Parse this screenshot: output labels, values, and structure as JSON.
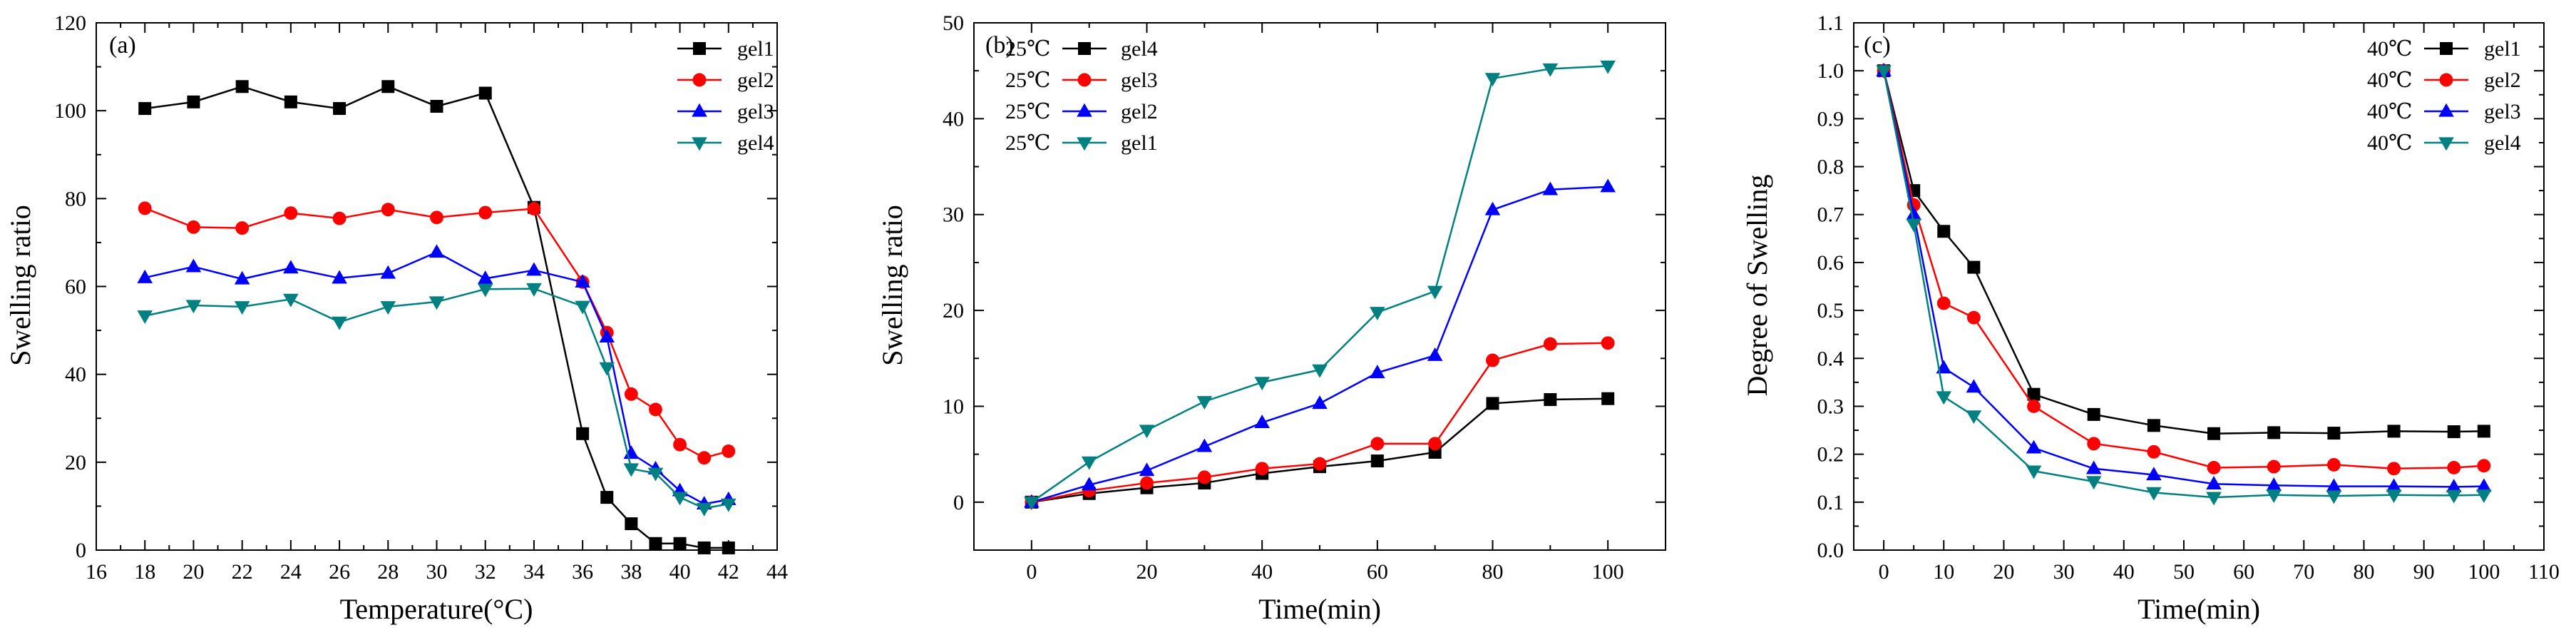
{
  "colors": {
    "gel1": "#000000",
    "gel2": "#ff0000",
    "gel3": "#0000ff",
    "gel4": "#008080"
  },
  "chart_data": [
    {
      "type": "line",
      "panel_label": "(a)",
      "xlabel": "Temperature(°C)",
      "ylabel": "Swelling ratio",
      "xlim": [
        16,
        44
      ],
      "ylim": [
        0,
        120
      ],
      "xticks": [
        16,
        18,
        20,
        22,
        24,
        26,
        28,
        30,
        32,
        34,
        36,
        38,
        40,
        42,
        44
      ],
      "yticks": [
        0,
        20,
        40,
        60,
        80,
        100,
        120
      ],
      "legend_position": "top-right",
      "series": [
        {
          "name": "gel1",
          "color": "#000000",
          "marker": "square",
          "x": [
            18,
            20,
            22,
            24,
            26,
            28,
            30,
            32,
            34,
            36,
            37,
            38,
            39,
            40,
            41,
            42
          ],
          "y": [
            100.5,
            102,
            105.5,
            102,
            100.5,
            105.5,
            101,
            104,
            78,
            26.5,
            12,
            6,
            1.5,
            1.5,
            0.5,
            0.5
          ]
        },
        {
          "name": "gel2",
          "color": "#ff0000",
          "marker": "circle",
          "x": [
            18,
            20,
            22,
            24,
            26,
            28,
            30,
            32,
            34,
            36,
            37,
            38,
            39,
            40,
            41,
            42
          ],
          "y": [
            77.8,
            73.5,
            73.3,
            76.7,
            75.5,
            77.5,
            75.7,
            76.8,
            77.7,
            61,
            49.5,
            35.5,
            32,
            24,
            21,
            22.5
          ]
        },
        {
          "name": "gel3",
          "color": "#0000ff",
          "marker": "triangle-up",
          "x": [
            18,
            20,
            22,
            24,
            26,
            28,
            30,
            32,
            34,
            36,
            37,
            38,
            39,
            40,
            41,
            42
          ],
          "y": [
            62,
            64.5,
            61.7,
            64.2,
            61.9,
            63,
            67.8,
            61.8,
            63.7,
            61,
            48.5,
            22,
            18.5,
            13.5,
            10.5,
            11.5
          ]
        },
        {
          "name": "gel4",
          "color": "#008080",
          "marker": "triangle-down",
          "x": [
            18,
            20,
            22,
            24,
            26,
            28,
            30,
            32,
            34,
            36,
            37,
            38,
            39,
            40,
            41,
            42
          ],
          "y": [
            53.3,
            55.7,
            55.4,
            57.1,
            51.9,
            55.4,
            56.5,
            59.4,
            59.5,
            55.5,
            41.5,
            18.5,
            17.5,
            12,
            9.5,
            10.5
          ]
        }
      ]
    },
    {
      "type": "line",
      "panel_label": "(b)",
      "xlabel": "Time(min)",
      "ylabel": "Swelling ratio",
      "xlim": [
        -10,
        110
      ],
      "ylim": [
        -5,
        50
      ],
      "xticks": [
        0,
        20,
        40,
        60,
        80,
        100
      ],
      "yticks": [
        0,
        10,
        20,
        30,
        40,
        50
      ],
      "legend_position": "top-left",
      "series": [
        {
          "name": "gel4",
          "legend_prefix": "25℃",
          "color": "#000000",
          "marker": "square",
          "x": [
            0,
            10,
            20,
            30,
            40,
            50,
            60,
            70,
            80,
            90,
            100
          ],
          "y": [
            0,
            0.9,
            1.5,
            2,
            3,
            3.7,
            4.3,
            5.2,
            10.3,
            10.7,
            10.8
          ]
        },
        {
          "name": "gel3",
          "legend_prefix": "25℃",
          "color": "#ff0000",
          "marker": "circle",
          "x": [
            0,
            10,
            20,
            30,
            40,
            50,
            60,
            70,
            80,
            90,
            100
          ],
          "y": [
            0,
            1.2,
            2,
            2.6,
            3.5,
            4,
            6.1,
            6.1,
            14.8,
            16.5,
            16.6
          ]
        },
        {
          "name": "gel2",
          "legend_prefix": "25℃",
          "color": "#0000ff",
          "marker": "triangle-up",
          "x": [
            0,
            10,
            20,
            30,
            40,
            50,
            60,
            70,
            80,
            90,
            100
          ],
          "y": [
            0,
            1.8,
            3.3,
            5.8,
            8.3,
            10.3,
            13.5,
            15.3,
            30.5,
            32.6,
            32.9
          ]
        },
        {
          "name": "gel1",
          "legend_prefix": "25℃",
          "color": "#008080",
          "marker": "triangle-down",
          "x": [
            0,
            10,
            20,
            30,
            40,
            50,
            60,
            70,
            80,
            90,
            100
          ],
          "y": [
            0,
            4.2,
            7.5,
            10.5,
            12.5,
            13.8,
            19.8,
            22,
            44.2,
            45.2,
            45.5
          ]
        }
      ]
    },
    {
      "type": "line",
      "panel_label": "(c)",
      "xlabel": "Time(min)",
      "ylabel": "Degree of Swelling",
      "xlim": [
        -5,
        110
      ],
      "ylim": [
        0,
        1.1
      ],
      "xticks": [
        0,
        10,
        20,
        30,
        40,
        50,
        60,
        70,
        80,
        90,
        100,
        110
      ],
      "yticks": [
        0.0,
        0.1,
        0.2,
        0.3,
        0.4,
        0.5,
        0.6,
        0.7,
        0.8,
        0.9,
        1.0,
        1.1
      ],
      "legend_position": "top-right",
      "series": [
        {
          "name": "gel1",
          "legend_prefix": "40℃",
          "color": "#000000",
          "marker": "square",
          "x": [
            0,
            5,
            10,
            15,
            25,
            35,
            45,
            55,
            65,
            75,
            85,
            95,
            100
          ],
          "y": [
            1.0,
            0.75,
            0.665,
            0.59,
            0.325,
            0.283,
            0.26,
            0.243,
            0.245,
            0.244,
            0.248,
            0.247,
            0.248
          ]
        },
        {
          "name": "gel2",
          "legend_prefix": "40℃",
          "color": "#ff0000",
          "marker": "circle",
          "x": [
            0,
            5,
            10,
            15,
            25,
            35,
            45,
            55,
            65,
            75,
            85,
            95,
            100
          ],
          "y": [
            1.0,
            0.72,
            0.515,
            0.485,
            0.3,
            0.222,
            0.205,
            0.172,
            0.174,
            0.178,
            0.17,
            0.172,
            0.176
          ]
        },
        {
          "name": "gel3",
          "legend_prefix": "40℃",
          "color": "#0000ff",
          "marker": "triangle-up",
          "x": [
            0,
            5,
            10,
            15,
            25,
            35,
            45,
            55,
            65,
            75,
            85,
            95,
            100
          ],
          "y": [
            1.0,
            0.7,
            0.38,
            0.34,
            0.213,
            0.17,
            0.157,
            0.138,
            0.135,
            0.133,
            0.133,
            0.132,
            0.133
          ]
        },
        {
          "name": "gel4",
          "legend_prefix": "40℃",
          "color": "#008080",
          "marker": "triangle-down",
          "x": [
            0,
            5,
            10,
            15,
            25,
            35,
            45,
            55,
            65,
            75,
            85,
            95,
            100
          ],
          "y": [
            1.0,
            0.68,
            0.32,
            0.28,
            0.165,
            0.143,
            0.12,
            0.11,
            0.115,
            0.113,
            0.115,
            0.114,
            0.115
          ]
        }
      ]
    }
  ]
}
